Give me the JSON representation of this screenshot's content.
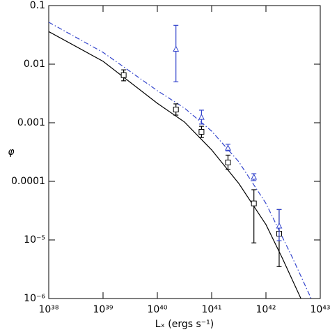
{
  "chart_data": {
    "type": "line",
    "xlabel": "Lₓ (ergs s⁻¹)",
    "ylabel": "φ",
    "xscale": "log",
    "yscale": "log",
    "xlim": [
      1e+38,
      1e+43
    ],
    "ylim": [
      1e-06,
      0.1
    ],
    "xticks": [
      {
        "value": 1e+38,
        "label": "10³⁸"
      },
      {
        "value": 1e+39,
        "label": "10³⁹"
      },
      {
        "value": 1e+40,
        "label": "10⁴⁰"
      },
      {
        "value": 1e+41,
        "label": "10⁴¹"
      },
      {
        "value": 1e+42,
        "label": "10⁴²"
      },
      {
        "value": 1e+43,
        "label": "10⁴³"
      }
    ],
    "yticks": [
      {
        "value": 1e-06,
        "label": "10⁻⁶"
      },
      {
        "value": 1e-05,
        "label": "10⁻⁵"
      },
      0.0001,
      0.001,
      0.01,
      0.1
    ],
    "series": [
      {
        "color": "#000000",
        "style": "solid",
        "x": [
          1e+38,
          1e+39,
          1e+40,
          3.16e+40,
          1e+41,
          3.16e+41,
          1e+42,
          2e+42,
          4.4e+42
        ],
        "values": [
          0.036,
          0.0112,
          0.00215,
          0.00103,
          0.000344,
          9.2e-05,
          1.83e-05,
          4.9e-06,
          1e-06
        ]
      },
      {
        "color": "#3344cc",
        "style": "dash-dot",
        "x": [
          1e+38,
          1e+39,
          1e+40,
          3.16e+40,
          1e+41,
          3.16e+41,
          1e+42,
          3.1e+42,
          6.8e+42
        ],
        "values": [
          0.052,
          0.0159,
          0.00353,
          0.00178,
          0.00072,
          0.000216,
          4.2e-05,
          4.9e-06,
          1e-06
        ]
      }
    ],
    "points": [
      {
        "color": "#000000",
        "marker": "square",
        "x": [
          2.4e+39,
          2.2e+40,
          6.5e+40,
          2e+41,
          6e+41,
          1.75e+42
        ],
        "values": [
          0.0065,
          0.00168,
          0.0007,
          0.00021,
          4.2e-05,
          1.28e-05
        ],
        "err_low": [
          0.0052,
          0.00135,
          0.00056,
          0.00016,
          8.9e-06,
          3.5e-06
        ],
        "err_high": [
          0.008,
          0.0021,
          0.00087,
          0.00028,
          7.2e-05,
          3.3e-05
        ]
      },
      {
        "color": "#3344cc",
        "marker": "triangle",
        "x": [
          2.2e+40,
          6.5e+40,
          2e+41,
          6e+41,
          1.75e+42
        ],
        "values": [
          0.018,
          0.00124,
          0.00037,
          0.000118,
          1.73e-05
        ],
        "err_low": [
          0.005,
          0.00095,
          0.00033,
          0.000103,
          9.7e-06
        ],
        "err_high": [
          0.046,
          0.00164,
          0.00043,
          0.000135,
          3.3e-05
        ]
      }
    ]
  }
}
